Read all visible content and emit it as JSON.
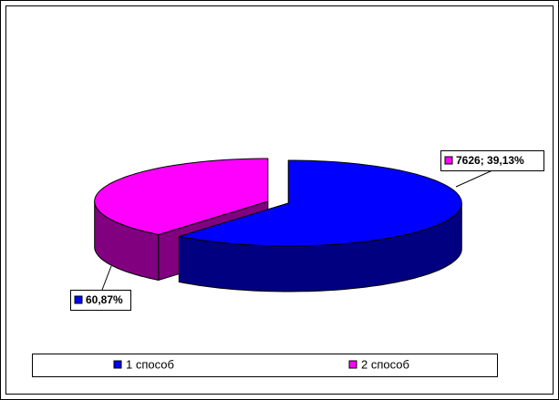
{
  "chart_data": {
    "type": "pie3d",
    "categories": [
      "1 способ",
      "2 способ"
    ],
    "values": [
      60.87,
      39.13
    ],
    "value_labels": [
      "60,87%",
      "7626; 39,13%"
    ],
    "colors": [
      "#0000ff",
      "#ff00ff"
    ],
    "legend": "bottom"
  }
}
